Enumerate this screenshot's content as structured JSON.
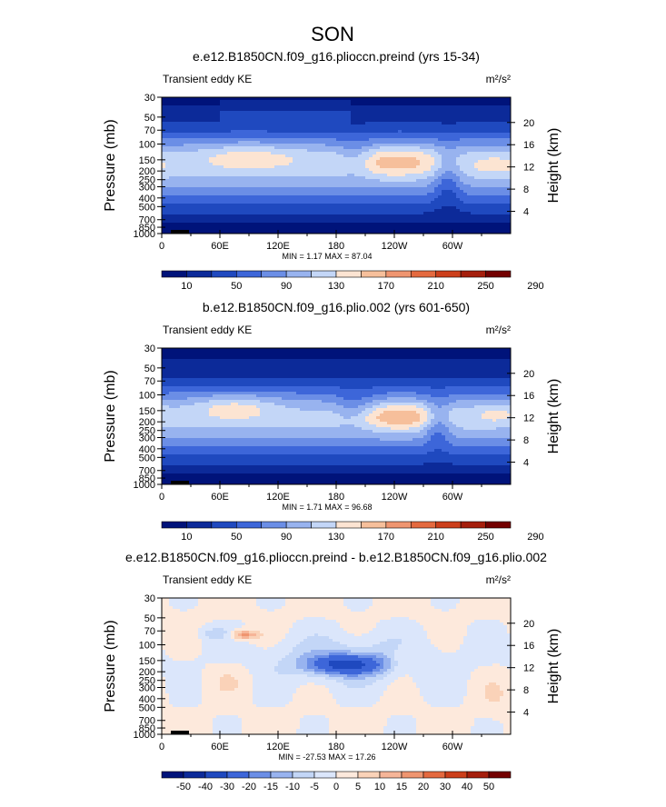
{
  "figure": {
    "title": "SON"
  },
  "colors": {
    "abs_levels": [
      "#00137a",
      "#0c2a99",
      "#1f49bf",
      "#3d66d9",
      "#6b8ee6",
      "#98b3ef",
      "#c3d6f7",
      "#fce4d2",
      "#f6bf9b",
      "#ef9570",
      "#e4693f",
      "#cc3f1b",
      "#a51e0c",
      "#730000"
    ],
    "diff_levels": [
      "#00137a",
      "#0c2a99",
      "#1f49bf",
      "#3d66d9",
      "#6b8ee6",
      "#98b3ef",
      "#c3d6f7",
      "#dbe6fb",
      "#fde9dc",
      "#fad2b8",
      "#f6b598",
      "#ef9570",
      "#e4693f",
      "#cc3f1b",
      "#a51e0c",
      "#730000"
    ]
  },
  "chart_data": [
    {
      "type": "heatmap",
      "title": "e.e12.B1850CN.f09_g16.plioccn.preind (yrs 15-34)",
      "left_label": "Transient eddy KE",
      "units": "m²/s²",
      "ylabel": "Pressure (mb)",
      "y2label": "Height (km)",
      "x_ticks": [
        "0",
        "60E",
        "120E",
        "180",
        "120W",
        "60W"
      ],
      "x_tick_lon": [
        0,
        60,
        120,
        180,
        240,
        300
      ],
      "xlim": [
        0,
        360
      ],
      "y_ticks": [
        "30",
        "50",
        "70",
        "100",
        "150",
        "200",
        "250",
        "300",
        "400",
        "500",
        "700",
        "850",
        "1000"
      ],
      "y_tick_p": [
        30,
        50,
        70,
        100,
        150,
        200,
        250,
        300,
        400,
        500,
        700,
        850,
        1000
      ],
      "ylim": [
        30,
        1000
      ],
      "y_scale": "log",
      "height_ticks": [
        "20",
        "16",
        "12",
        "8",
        "4"
      ],
      "height_tick_km": [
        20,
        16,
        12,
        8,
        4
      ],
      "stats": "MIN =    1.17   MAX =   87.04",
      "min": 1.17,
      "max": 87.04,
      "colorbar_labels": [
        "10",
        "50",
        "90",
        "130",
        "170",
        "210",
        "250",
        "290"
      ],
      "colorbar_type": "abs",
      "colorbar_bins": 14,
      "field": "abs1"
    },
    {
      "type": "heatmap",
      "title": "b.e12.B1850CN.f09_g16.plio.002 (yrs 601-650)",
      "left_label": "Transient eddy KE",
      "units": "m²/s²",
      "ylabel": "Pressure (mb)",
      "y2label": "Height (km)",
      "x_ticks": [
        "0",
        "60E",
        "120E",
        "180",
        "120W",
        "60W"
      ],
      "x_tick_lon": [
        0,
        60,
        120,
        180,
        240,
        300
      ],
      "xlim": [
        0,
        360
      ],
      "y_ticks": [
        "30",
        "50",
        "70",
        "100",
        "150",
        "200",
        "250",
        "300",
        "400",
        "500",
        "700",
        "850",
        "1000"
      ],
      "y_tick_p": [
        30,
        50,
        70,
        100,
        150,
        200,
        250,
        300,
        400,
        500,
        700,
        850,
        1000
      ],
      "ylim": [
        30,
        1000
      ],
      "y_scale": "log",
      "height_ticks": [
        "20",
        "16",
        "12",
        "8",
        "4"
      ],
      "height_tick_km": [
        20,
        16,
        12,
        8,
        4
      ],
      "stats": "MIN =    1.71   MAX =   96.68",
      "min": 1.71,
      "max": 96.68,
      "colorbar_labels": [
        "10",
        "50",
        "90",
        "130",
        "170",
        "210",
        "250",
        "290"
      ],
      "colorbar_type": "abs",
      "colorbar_bins": 14,
      "field": "abs2"
    },
    {
      "type": "heatmap",
      "title": "e.e12.B1850CN.f09_g16.plioccn.preind - b.e12.B1850CN.f09_g16.plio.002",
      "left_label": "Transient eddy KE",
      "units": "m²/s²",
      "ylabel": "Pressure (mb)",
      "y2label": "Height (km)",
      "x_ticks": [
        "0",
        "60E",
        "120E",
        "180",
        "120W",
        "60W"
      ],
      "x_tick_lon": [
        0,
        60,
        120,
        180,
        240,
        300
      ],
      "xlim": [
        0,
        360
      ],
      "y_ticks": [
        "30",
        "50",
        "70",
        "100",
        "150",
        "200",
        "250",
        "300",
        "400",
        "500",
        "700",
        "850",
        "1000"
      ],
      "y_tick_p": [
        30,
        50,
        70,
        100,
        150,
        200,
        250,
        300,
        400,
        500,
        700,
        850,
        1000
      ],
      "ylim": [
        30,
        1000
      ],
      "y_scale": "log",
      "height_ticks": [
        "20",
        "16",
        "12",
        "8",
        "4"
      ],
      "height_tick_km": [
        20,
        16,
        12,
        8,
        4
      ],
      "stats": "MIN = -27.53   MAX =   17.26",
      "min": -27.53,
      "max": 17.26,
      "colorbar_labels": [
        "-50",
        "-40",
        "-30",
        "-20",
        "-15",
        "-10",
        "-5",
        "0",
        "5",
        "10",
        "15",
        "20",
        "30",
        "40",
        "50"
      ],
      "colorbar_type": "diff",
      "colorbar_bins": 16,
      "field": "diff"
    }
  ]
}
